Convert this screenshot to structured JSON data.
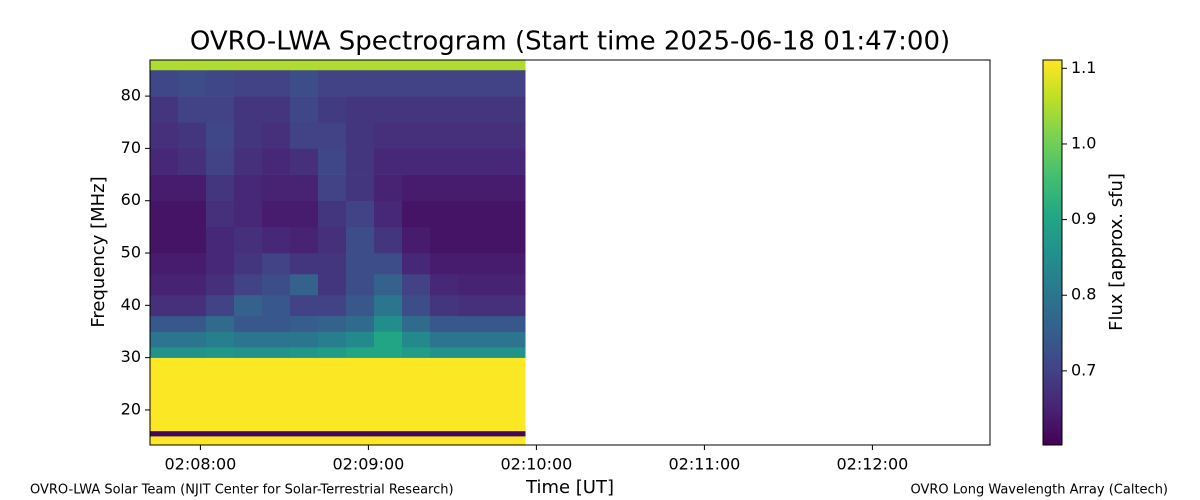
{
  "chart_data": {
    "type": "heatmap",
    "title": "OVRO-LWA Spectrogram (Start time 2025-06-18 01:47:00)",
    "xlabel": "Time [UT]",
    "ylabel": "Frequency [MHz]",
    "xlim": [
      "02:07:42",
      "02:12:42"
    ],
    "xticks": [
      "02:08:00",
      "02:09:00",
      "02:10:00",
      "02:11:00",
      "02:12:00"
    ],
    "ylim": [
      13.3,
      86.9
    ],
    "yticks": [
      20,
      30,
      40,
      50,
      60,
      70,
      80
    ],
    "x_edges": [
      "02:07:42",
      "02:07:52",
      "02:08:02",
      "02:08:12",
      "02:08:22",
      "02:08:32",
      "02:08:42",
      "02:08:52",
      "02:09:02",
      "02:09:12",
      "02:09:22",
      "02:09:32",
      "02:09:42",
      "02:09:52",
      "02:09:56"
    ],
    "y_edges": [
      13.3,
      15,
      16,
      30,
      32,
      35,
      38,
      42,
      46,
      50,
      55,
      60,
      65,
      70,
      75,
      80,
      85,
      86.9
    ],
    "values": [
      [
        1.11,
        1.11,
        1.11,
        1.11,
        1.11,
        1.11,
        1.11,
        1.11,
        1.11,
        1.11,
        1.11,
        1.11,
        1.11,
        1.11
      ],
      [
        0.61,
        0.61,
        0.61,
        0.61,
        0.61,
        0.61,
        0.61,
        0.61,
        0.61,
        0.61,
        0.61,
        0.61,
        0.61,
        0.61
      ],
      [
        1.11,
        1.11,
        1.11,
        1.11,
        1.11,
        1.11,
        1.11,
        1.11,
        1.11,
        1.11,
        1.11,
        1.11,
        1.11,
        1.11
      ],
      [
        0.86,
        0.86,
        0.87,
        0.86,
        0.86,
        0.87,
        0.88,
        0.9,
        0.9,
        0.88,
        0.86,
        0.86,
        0.86,
        0.86
      ],
      [
        0.8,
        0.8,
        0.82,
        0.8,
        0.8,
        0.8,
        0.82,
        0.84,
        0.9,
        0.84,
        0.8,
        0.8,
        0.8,
        0.8
      ],
      [
        0.74,
        0.74,
        0.78,
        0.74,
        0.74,
        0.75,
        0.76,
        0.78,
        0.85,
        0.78,
        0.74,
        0.74,
        0.74,
        0.74
      ],
      [
        0.67,
        0.67,
        0.7,
        0.76,
        0.74,
        0.7,
        0.7,
        0.74,
        0.8,
        0.72,
        0.68,
        0.67,
        0.67,
        0.67
      ],
      [
        0.65,
        0.65,
        0.67,
        0.7,
        0.72,
        0.76,
        0.68,
        0.72,
        0.76,
        0.7,
        0.66,
        0.65,
        0.65,
        0.65
      ],
      [
        0.64,
        0.64,
        0.66,
        0.68,
        0.7,
        0.68,
        0.68,
        0.72,
        0.72,
        0.66,
        0.64,
        0.64,
        0.64,
        0.64
      ],
      [
        0.63,
        0.63,
        0.66,
        0.67,
        0.66,
        0.65,
        0.67,
        0.72,
        0.68,
        0.64,
        0.63,
        0.63,
        0.63,
        0.63
      ],
      [
        0.63,
        0.63,
        0.67,
        0.66,
        0.64,
        0.64,
        0.68,
        0.7,
        0.66,
        0.63,
        0.63,
        0.63,
        0.63,
        0.63
      ],
      [
        0.64,
        0.64,
        0.68,
        0.66,
        0.65,
        0.65,
        0.7,
        0.68,
        0.65,
        0.64,
        0.64,
        0.64,
        0.64,
        0.64
      ],
      [
        0.66,
        0.67,
        0.7,
        0.67,
        0.66,
        0.67,
        0.71,
        0.68,
        0.66,
        0.66,
        0.66,
        0.66,
        0.66,
        0.66
      ],
      [
        0.67,
        0.68,
        0.71,
        0.68,
        0.67,
        0.7,
        0.7,
        0.68,
        0.67,
        0.67,
        0.67,
        0.67,
        0.67,
        0.67
      ],
      [
        0.68,
        0.7,
        0.7,
        0.68,
        0.68,
        0.71,
        0.69,
        0.68,
        0.68,
        0.68,
        0.68,
        0.68,
        0.68,
        0.68
      ],
      [
        0.71,
        0.72,
        0.71,
        0.7,
        0.7,
        0.72,
        0.7,
        0.7,
        0.7,
        0.7,
        0.7,
        0.7,
        0.7,
        0.7
      ],
      [
        1.05,
        1.05,
        1.05,
        1.05,
        1.05,
        1.05,
        1.05,
        1.05,
        1.05,
        1.05,
        1.05,
        1.05,
        1.05,
        1.05
      ]
    ],
    "colorbar": {
      "label": "Flux [approx. sfu]",
      "colormap": "viridis",
      "lim": [
        0.602,
        1.111
      ],
      "ticks": [
        0.7,
        0.8,
        0.9,
        {
          "value": 1,
          "label": "1.0"
        },
        1.1
      ]
    }
  },
  "footer": {
    "left": "OVRO-LWA Solar Team (NJIT Center for Solar-Terrestrial Research)",
    "right": "OVRO Long Wavelength Array (Caltech)"
  }
}
